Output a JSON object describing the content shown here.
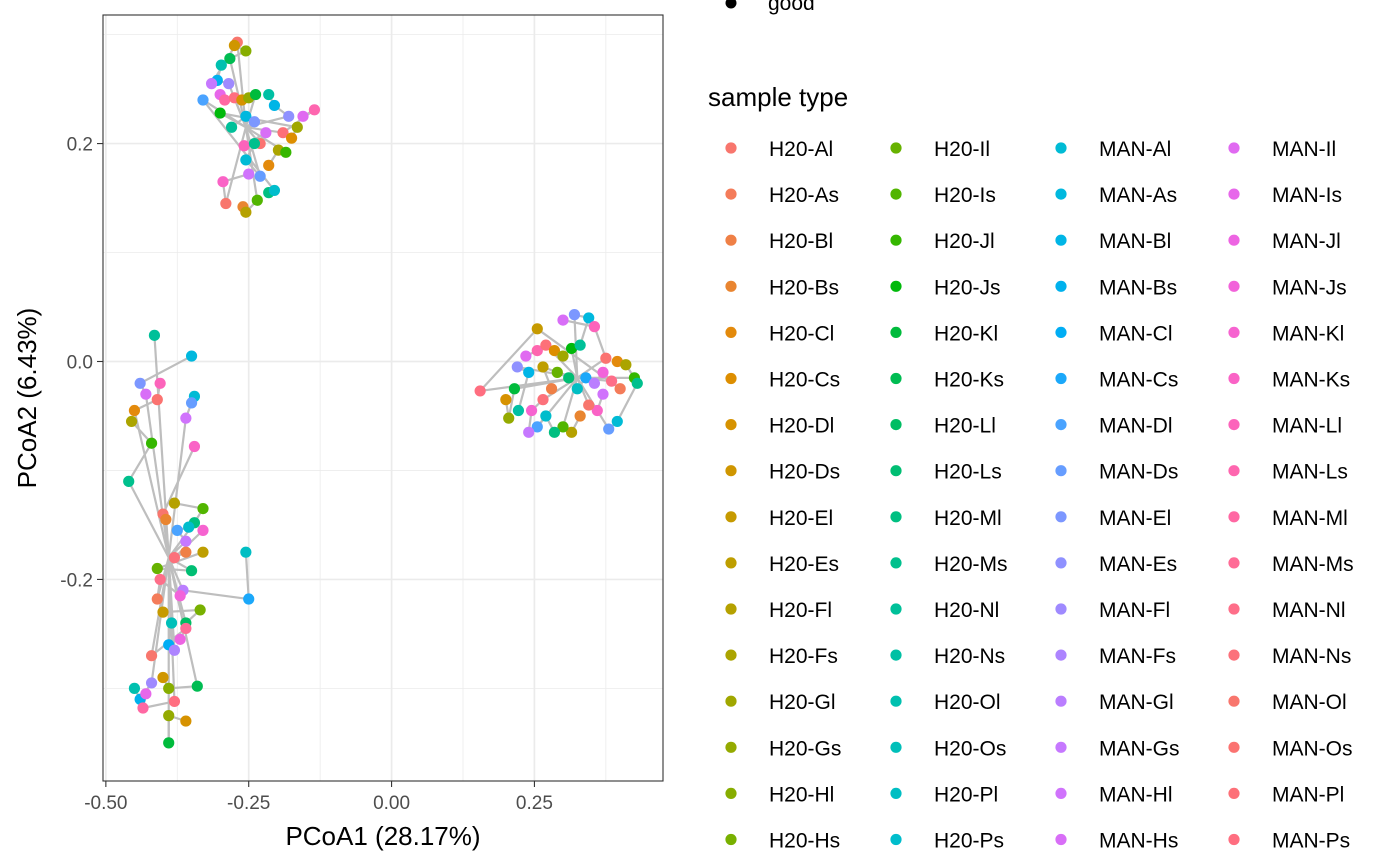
{
  "chart_data": {
    "type": "scatter",
    "xlabel": "PCoA1 (28.17%)",
    "ylabel": "PCoA2 (6.43%)",
    "xlim": [
      -0.505,
      0.475
    ],
    "ylim": [
      -0.385,
      0.318
    ],
    "x_ticks": [
      -0.5,
      -0.25,
      0.0,
      0.25
    ],
    "x_tick_labels": [
      "-0.50",
      "-0.25",
      "0.00",
      "0.25"
    ],
    "y_ticks": [
      -0.2,
      0.0,
      0.2
    ],
    "y_tick_labels": [
      "-0.2",
      "0.0",
      "0.2"
    ],
    "grid": true,
    "connector_color": "#bebebe",
    "shape_legend_label": "good",
    "legend_title": "sample type",
    "legend_placement": "right",
    "legend_columns": 4,
    "series": [
      {
        "name": "H20-Al",
        "color": "#F8766D"
      },
      {
        "name": "H20-As",
        "color": "#F47C5A"
      },
      {
        "name": "H20-Bl",
        "color": "#EF8046"
      },
      {
        "name": "H20-Bs",
        "color": "#E98530"
      },
      {
        "name": "H20-Cl",
        "color": "#E38A0C"
      },
      {
        "name": "H20-Cs",
        "color": "#DD8E00"
      },
      {
        "name": "H20-Dl",
        "color": "#D69200"
      },
      {
        "name": "H20-Ds",
        "color": "#CF9600"
      },
      {
        "name": "H20-El",
        "color": "#C69A00"
      },
      {
        "name": "H20-Es",
        "color": "#BE9E00"
      },
      {
        "name": "H20-Fl",
        "color": "#B5A100"
      },
      {
        "name": "H20-Fs",
        "color": "#ABA400"
      },
      {
        "name": "H20-Gl",
        "color": "#A0A700"
      },
      {
        "name": "H20-Gs",
        "color": "#94AA00"
      },
      {
        "name": "H20-Hl",
        "color": "#87AD00"
      },
      {
        "name": "H20-Hs",
        "color": "#78B000"
      },
      {
        "name": "H20-Il",
        "color": "#67B200"
      },
      {
        "name": "H20-Is",
        "color": "#52B500"
      },
      {
        "name": "H20-Jl",
        "color": "#35B700"
      },
      {
        "name": "H20-Js",
        "color": "#00B90B"
      },
      {
        "name": "H20-Kl",
        "color": "#00BB3C"
      },
      {
        "name": "H20-Ks",
        "color": "#00BC52"
      },
      {
        "name": "H20-Ll",
        "color": "#00BD63"
      },
      {
        "name": "H20-Ls",
        "color": "#00BE73"
      },
      {
        "name": "H20-Ml",
        "color": "#00BF81"
      },
      {
        "name": "H20-Ms",
        "color": "#00C08D"
      },
      {
        "name": "H20-Nl",
        "color": "#00C099"
      },
      {
        "name": "H20-Ns",
        "color": "#00C0A4"
      },
      {
        "name": "H20-Ol",
        "color": "#00C0AF"
      },
      {
        "name": "H20-Os",
        "color": "#00BFB9"
      },
      {
        "name": "H20-Pl",
        "color": "#00BEC3"
      },
      {
        "name": "H20-Ps",
        "color": "#00BDCC"
      },
      {
        "name": "MAN-Al",
        "color": "#00BBD5"
      },
      {
        "name": "MAN-As",
        "color": "#00B8DE"
      },
      {
        "name": "MAN-Bl",
        "color": "#00B5E6"
      },
      {
        "name": "MAN-Bs",
        "color": "#00B1ED"
      },
      {
        "name": "MAN-Cl",
        "color": "#00ADF4"
      },
      {
        "name": "MAN-Cs",
        "color": "#1BA8FA"
      },
      {
        "name": "MAN-Dl",
        "color": "#4AA3FF"
      },
      {
        "name": "MAN-Ds",
        "color": "#669DFF"
      },
      {
        "name": "MAN-El",
        "color": "#7C97FF"
      },
      {
        "name": "MAN-Es",
        "color": "#8F91FF"
      },
      {
        "name": "MAN-Fl",
        "color": "#9F8AFF"
      },
      {
        "name": "MAN-Fs",
        "color": "#AD84FF"
      },
      {
        "name": "MAN-Gl",
        "color": "#BA7EFF"
      },
      {
        "name": "MAN-Gs",
        "color": "#C678FF"
      },
      {
        "name": "MAN-Hl",
        "color": "#D073FC"
      },
      {
        "name": "MAN-Hs",
        "color": "#D86EF7"
      },
      {
        "name": "MAN-Il",
        "color": "#E06AF1"
      },
      {
        "name": "MAN-Is",
        "color": "#E767EA"
      },
      {
        "name": "MAN-Jl",
        "color": "#ED64E2"
      },
      {
        "name": "MAN-Js",
        "color": "#F263DA"
      },
      {
        "name": "MAN-Kl",
        "color": "#F663D0"
      },
      {
        "name": "MAN-Ks",
        "color": "#FA63C6"
      },
      {
        "name": "MAN-Ll",
        "color": "#FC64BB"
      },
      {
        "name": "MAN-Ls",
        "color": "#FE66AF"
      },
      {
        "name": "MAN-Ml",
        "color": "#FF68A3"
      },
      {
        "name": "MAN-Ms",
        "color": "#FF6B96"
      },
      {
        "name": "MAN-Nl",
        "color": "#FE6E89"
      },
      {
        "name": "MAN-Ns",
        "color": "#FC717B"
      },
      {
        "name": "MAN-Ol",
        "color": "#F8766D"
      },
      {
        "name": "MAN-Os",
        "color": "#FB7371"
      },
      {
        "name": "MAN-Pl",
        "color": "#FD7078"
      },
      {
        "name": "MAN-Ps",
        "color": "#FF6E80"
      }
    ],
    "clusters": [
      {
        "name": "upper-left",
        "center": [
          -0.255,
          0.215
        ],
        "points": [
          [
            -0.27,
            0.293
          ],
          [
            -0.275,
            0.29
          ],
          [
            -0.255,
            0.285
          ],
          [
            -0.283,
            0.278
          ],
          [
            -0.298,
            0.272
          ],
          [
            -0.305,
            0.258
          ],
          [
            -0.285,
            0.255
          ],
          [
            -0.3,
            0.245
          ],
          [
            -0.292,
            0.24
          ],
          [
            -0.275,
            0.242
          ],
          [
            -0.262,
            0.24
          ],
          [
            -0.25,
            0.242
          ],
          [
            -0.238,
            0.245
          ],
          [
            -0.215,
            0.245
          ],
          [
            -0.205,
            0.235
          ],
          [
            -0.18,
            0.225
          ],
          [
            -0.155,
            0.225
          ],
          [
            -0.135,
            0.231
          ],
          [
            -0.19,
            0.21
          ],
          [
            -0.175,
            0.205
          ],
          [
            -0.165,
            0.215
          ],
          [
            -0.3,
            0.228
          ],
          [
            -0.28,
            0.215
          ],
          [
            -0.255,
            0.225
          ],
          [
            -0.24,
            0.22
          ],
          [
            -0.22,
            0.21
          ],
          [
            -0.258,
            0.198
          ],
          [
            -0.23,
            0.2
          ],
          [
            -0.215,
            0.18
          ],
          [
            -0.198,
            0.194
          ],
          [
            -0.185,
            0.192
          ],
          [
            -0.24,
            0.2
          ],
          [
            -0.255,
            0.185
          ],
          [
            -0.23,
            0.17
          ],
          [
            -0.25,
            0.172
          ],
          [
            -0.295,
            0.165
          ],
          [
            -0.29,
            0.145
          ],
          [
            -0.26,
            0.142
          ],
          [
            -0.255,
            0.137
          ],
          [
            -0.235,
            0.148
          ],
          [
            -0.215,
            0.155
          ],
          [
            -0.205,
            0.157
          ],
          [
            -0.33,
            0.24
          ],
          [
            -0.315,
            0.255
          ]
        ]
      },
      {
        "name": "right",
        "center": [
          0.325,
          -0.015
        ],
        "points": [
          [
            0.155,
            -0.027
          ],
          [
            0.2,
            -0.035
          ],
          [
            0.205,
            -0.052
          ],
          [
            0.215,
            -0.025
          ],
          [
            0.222,
            -0.045
          ],
          [
            0.24,
            -0.01
          ],
          [
            0.22,
            -0.005
          ],
          [
            0.235,
            0.005
          ],
          [
            0.255,
            0.01
          ],
          [
            0.27,
            0.015
          ],
          [
            0.285,
            0.01
          ],
          [
            0.3,
            0.005
          ],
          [
            0.315,
            0.012
          ],
          [
            0.33,
            0.015
          ],
          [
            0.345,
            0.04
          ],
          [
            0.32,
            0.043
          ],
          [
            0.3,
            0.038
          ],
          [
            0.355,
            0.032
          ],
          [
            0.375,
            0.003
          ],
          [
            0.395,
            0.0
          ],
          [
            0.41,
            -0.003
          ],
          [
            0.425,
            -0.015
          ],
          [
            0.43,
            -0.02
          ],
          [
            0.395,
            -0.055
          ],
          [
            0.38,
            -0.062
          ],
          [
            0.37,
            -0.03
          ],
          [
            0.36,
            -0.045
          ],
          [
            0.345,
            -0.04
          ],
          [
            0.33,
            -0.05
          ],
          [
            0.315,
            -0.065
          ],
          [
            0.3,
            -0.06
          ],
          [
            0.285,
            -0.065
          ],
          [
            0.27,
            -0.05
          ],
          [
            0.255,
            -0.06
          ],
          [
            0.24,
            -0.065
          ],
          [
            0.245,
            -0.045
          ],
          [
            0.265,
            -0.035
          ],
          [
            0.28,
            -0.025
          ],
          [
            0.265,
            -0.005
          ],
          [
            0.29,
            -0.01
          ],
          [
            0.31,
            -0.015
          ],
          [
            0.325,
            -0.025
          ],
          [
            0.34,
            -0.015
          ],
          [
            0.355,
            -0.02
          ],
          [
            0.37,
            -0.01
          ],
          [
            0.385,
            -0.018
          ],
          [
            0.4,
            -0.025
          ],
          [
            0.255,
            0.03
          ]
        ]
      },
      {
        "name": "lower-left",
        "center": [
          -0.39,
          -0.18
        ],
        "points": [
          [
            -0.415,
            0.024
          ],
          [
            -0.35,
            0.005
          ],
          [
            -0.44,
            -0.02
          ],
          [
            -0.43,
            -0.03
          ],
          [
            -0.405,
            -0.02
          ],
          [
            -0.41,
            -0.035
          ],
          [
            -0.45,
            -0.045
          ],
          [
            -0.455,
            -0.055
          ],
          [
            -0.42,
            -0.075
          ],
          [
            -0.46,
            -0.11
          ],
          [
            -0.345,
            -0.032
          ],
          [
            -0.35,
            -0.038
          ],
          [
            -0.36,
            -0.052
          ],
          [
            -0.345,
            -0.078
          ],
          [
            -0.4,
            -0.14
          ],
          [
            -0.395,
            -0.145
          ],
          [
            -0.38,
            -0.13
          ],
          [
            -0.33,
            -0.135
          ],
          [
            -0.345,
            -0.148
          ],
          [
            -0.355,
            -0.152
          ],
          [
            -0.375,
            -0.155
          ],
          [
            -0.36,
            -0.165
          ],
          [
            -0.33,
            -0.155
          ],
          [
            -0.38,
            -0.18
          ],
          [
            -0.36,
            -0.175
          ],
          [
            -0.33,
            -0.175
          ],
          [
            -0.41,
            -0.19
          ],
          [
            -0.35,
            -0.192
          ],
          [
            -0.255,
            -0.175
          ],
          [
            -0.25,
            -0.218
          ],
          [
            -0.365,
            -0.21
          ],
          [
            -0.37,
            -0.215
          ],
          [
            -0.405,
            -0.2
          ],
          [
            -0.41,
            -0.218
          ],
          [
            -0.4,
            -0.23
          ],
          [
            -0.335,
            -0.228
          ],
          [
            -0.36,
            -0.24
          ],
          [
            -0.385,
            -0.24
          ],
          [
            -0.39,
            -0.26
          ],
          [
            -0.38,
            -0.265
          ],
          [
            -0.37,
            -0.255
          ],
          [
            -0.36,
            -0.245
          ],
          [
            -0.42,
            -0.27
          ],
          [
            -0.4,
            -0.29
          ],
          [
            -0.39,
            -0.3
          ],
          [
            -0.34,
            -0.298
          ],
          [
            -0.45,
            -0.3
          ],
          [
            -0.44,
            -0.31
          ],
          [
            -0.42,
            -0.295
          ],
          [
            -0.43,
            -0.305
          ],
          [
            -0.435,
            -0.318
          ],
          [
            -0.38,
            -0.312
          ],
          [
            -0.36,
            -0.33
          ],
          [
            -0.39,
            -0.325
          ],
          [
            -0.39,
            -0.35
          ]
        ]
      }
    ]
  }
}
